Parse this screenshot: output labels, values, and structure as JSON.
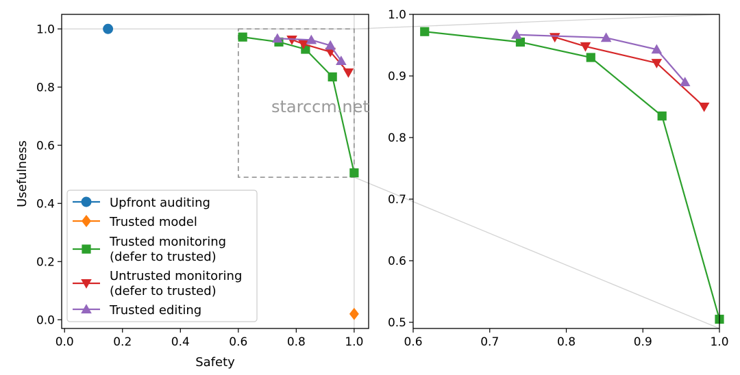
{
  "watermark": "starccm.net",
  "colors": {
    "upfront": "#1f77b4",
    "trusted_model": "#ff7f0e",
    "trusted_monitoring": "#2ca02c",
    "untrusted_monitoring": "#d62728",
    "trusted_editing": "#9467bd",
    "guide": "#d3d3d3",
    "zoom_box": "#888888"
  },
  "chart_data": [
    {
      "type": "line",
      "panel": "overview",
      "xlabel": "Safety",
      "ylabel": "Usefulness",
      "xlim": [
        -0.01,
        1.05
      ],
      "ylim": [
        -0.03,
        1.05
      ],
      "xticks": [
        "0.0",
        "0.2",
        "0.4",
        "0.6",
        "0.8",
        "1.0"
      ],
      "yticks": [
        "0.0",
        "0.2",
        "0.4",
        "0.6",
        "0.8",
        "1.0"
      ],
      "reference_lines": {
        "y": 1.0,
        "x": 1.0
      },
      "zoom_box": {
        "x": [
          0.6,
          1.0
        ],
        "y": [
          0.49,
          1.0
        ]
      },
      "legend": {
        "placement": "lower-left",
        "entries": [
          [
            "Upfront auditing"
          ],
          [
            "Trusted model"
          ],
          [
            "Trusted monitoring",
            "(defer to trusted)"
          ],
          [
            "Untrusted monitoring",
            "(defer to trusted)"
          ],
          [
            "Trusted editing"
          ]
        ]
      },
      "series": [
        {
          "name": "Upfront auditing",
          "marker": "circle",
          "x": [
            0.15
          ],
          "y": [
            1.0
          ]
        },
        {
          "name": "Trusted model",
          "marker": "diamond",
          "x": [
            1.0
          ],
          "y": [
            0.02
          ]
        },
        {
          "name": "Trusted monitoring (defer to trusted)",
          "marker": "square",
          "x": [
            0.615,
            0.74,
            0.832,
            0.925,
            1.0
          ],
          "y": [
            0.972,
            0.955,
            0.93,
            0.835,
            0.505
          ]
        },
        {
          "name": "Untrusted monitoring (defer to trusted)",
          "marker": "triangle-down",
          "x": [
            0.785,
            0.825,
            0.918,
            0.98
          ],
          "y": [
            0.963,
            0.948,
            0.921,
            0.85
          ]
        },
        {
          "name": "Trusted editing",
          "marker": "triangle-up",
          "x": [
            0.735,
            0.852,
            0.918,
            0.955
          ],
          "y": [
            0.967,
            0.962,
            0.943,
            0.89
          ]
        }
      ]
    },
    {
      "type": "line",
      "panel": "zoom",
      "xlabel": "",
      "ylabel": "",
      "xlim": [
        0.6,
        1.0
      ],
      "ylim": [
        0.49,
        1.0
      ],
      "xticks": [
        "0.6",
        "0.7",
        "0.8",
        "0.9",
        "1.0"
      ],
      "yticks": [
        "0.5",
        "0.6",
        "0.7",
        "0.8",
        "0.9",
        "1.0"
      ],
      "series_ref": "same as overview panel (zoomed)"
    }
  ]
}
